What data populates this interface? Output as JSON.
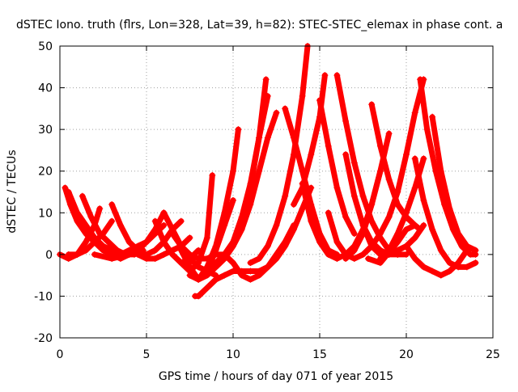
{
  "chart_data": {
    "type": "scatter",
    "title": "dSTEC Iono. truth (flrs, Lon=328, Lat=39, h=82): STEC-STEC_elemax in phase cont. a",
    "xlabel": "GPS time / hours of day 071 of year 2015",
    "ylabel": "dSTEC  / TECUs",
    "xlim": [
      0,
      25
    ],
    "ylim": [
      -20,
      50
    ],
    "xticks": [
      0,
      5,
      10,
      15,
      20,
      25
    ],
    "yticks": [
      -20,
      -10,
      0,
      10,
      20,
      30,
      40,
      50
    ],
    "xtick_labels": [
      "0",
      "5",
      "10",
      "15",
      "20",
      "25"
    ],
    "ytick_labels": [
      "-20",
      "-10",
      "0",
      "10",
      "20",
      "30",
      "40",
      "50"
    ],
    "grid": true,
    "marker": "+",
    "color": "#ff0000",
    "series": [
      {
        "x": [
          0.3,
          0.6,
          1.0,
          1.5,
          2.0,
          2.5,
          3.0,
          3.5,
          4.0
        ],
        "y": [
          16,
          12,
          8,
          5,
          3,
          1,
          0,
          -1,
          0
        ]
      },
      {
        "x": [
          0.5,
          1.0,
          1.5,
          2.0,
          2.5,
          3.0,
          3.5,
          4.0,
          4.5,
          5.0,
          5.5,
          6.0
        ],
        "y": [
          15,
          10,
          7,
          4,
          2,
          1,
          0,
          1,
          2,
          3,
          5,
          7
        ]
      },
      {
        "x": [
          0.0,
          0.5,
          1.0,
          1.5,
          2.0,
          2.3
        ],
        "y": [
          0,
          -1,
          0,
          3,
          7,
          11
        ]
      },
      {
        "x": [
          1.3,
          1.8,
          2.3,
          2.8,
          3.3,
          3.8,
          4.3,
          4.8
        ],
        "y": [
          14,
          9,
          5,
          3,
          1,
          0,
          0,
          1
        ]
      },
      {
        "x": [
          0.5,
          1.0,
          1.5,
          2.0,
          2.5,
          3.0
        ],
        "y": [
          0,
          0,
          1,
          3,
          5,
          8
        ]
      },
      {
        "x": [
          3.0,
          3.5,
          4.0,
          4.5,
          5.0,
          5.5,
          6.0,
          6.5,
          7.0
        ],
        "y": [
          12,
          7,
          3,
          1,
          0,
          1,
          3,
          6,
          8
        ]
      },
      {
        "x": [
          2.0,
          3.0,
          4.0,
          4.5,
          5.0,
          5.5,
          6.0
        ],
        "y": [
          0,
          -1,
          0,
          1,
          3,
          6,
          10
        ]
      },
      {
        "x": [
          5.5,
          6.0,
          6.5,
          7.0,
          7.5,
          8.0
        ],
        "y": [
          8,
          3,
          0,
          -2,
          -1,
          1
        ]
      },
      {
        "x": [
          6.0,
          6.5,
          7.0,
          7.5,
          8.0,
          8.5,
          9.0
        ],
        "y": [
          10,
          6,
          2,
          -1,
          -3,
          -4,
          -5
        ]
      },
      {
        "x": [
          4.5,
          5.0,
          5.5,
          6.0,
          6.5,
          7.0,
          7.5
        ],
        "y": [
          0,
          -1,
          -1,
          0,
          1,
          2,
          4
        ]
      },
      {
        "x": [
          7.0,
          7.5,
          8.0,
          8.5,
          9.0,
          9.5,
          10.0
        ],
        "y": [
          1,
          -3,
          -6,
          -4,
          1,
          7,
          13
        ]
      },
      {
        "x": [
          7.5,
          8.0,
          8.5,
          9.0,
          9.5,
          10.0,
          10.3
        ],
        "y": [
          -5,
          -6,
          -3,
          2,
          10,
          20,
          30
        ]
      },
      {
        "x": [
          6.5,
          7.0,
          7.5,
          8.0,
          8.5,
          9.0,
          9.5,
          10.0,
          10.5,
          11.0,
          11.5,
          12.0,
          12.5,
          13.0,
          13.5
        ],
        "y": [
          5,
          2,
          0,
          -1,
          -1,
          0,
          0,
          -2,
          -5,
          -6,
          -5,
          -3,
          0,
          3,
          7
        ]
      },
      {
        "x": [
          7.0,
          7.5,
          8.0,
          8.5,
          8.8
        ],
        "y": [
          -2,
          -4,
          -2,
          4,
          19
        ]
      },
      {
        "x": [
          8.0,
          8.5,
          9.0,
          9.5,
          10.0,
          10.5,
          11.0,
          11.5,
          12.0
        ],
        "y": [
          -6,
          -5,
          -3,
          -1,
          3,
          9,
          17,
          28,
          38
        ]
      },
      {
        "x": [
          8.5,
          9.0,
          9.5,
          10.0,
          10.5,
          11.0,
          11.5,
          11.9
        ],
        "y": [
          -3,
          -2,
          0,
          3,
          8,
          16,
          28,
          42
        ]
      },
      {
        "x": [
          9.0,
          9.5,
          10.0,
          10.5,
          11.0,
          11.5,
          12.0,
          12.5
        ],
        "y": [
          -3,
          -1,
          2,
          6,
          12,
          20,
          28,
          34
        ]
      },
      {
        "x": [
          7.8,
          8.0,
          8.5,
          9.0,
          9.5,
          10.0,
          10.5,
          11.0,
          11.5,
          12.0
        ],
        "y": [
          -10,
          -10,
          -8,
          -6,
          -5,
          -4,
          -4,
          -4,
          -4,
          -3
        ]
      },
      {
        "x": [
          12.0,
          12.5,
          13.0,
          13.5,
          14.0,
          14.5
        ],
        "y": [
          -3,
          -1,
          2,
          6,
          11,
          16
        ]
      },
      {
        "x": [
          11.0,
          11.5,
          12.0,
          12.5,
          13.0,
          13.5,
          14.0,
          14.3
        ],
        "y": [
          -2,
          -1,
          2,
          7,
          14,
          24,
          38,
          50
        ]
      },
      {
        "x": [
          13.0,
          13.5,
          14.0,
          14.5,
          15.0,
          15.5,
          16.0
        ],
        "y": [
          35,
          28,
          20,
          12,
          5,
          1,
          0
        ]
      },
      {
        "x": [
          13.5,
          14.0,
          14.5,
          15.0,
          15.3
        ],
        "y": [
          12,
          16,
          24,
          33,
          43
        ]
      },
      {
        "x": [
          14.0,
          14.5,
          15.0,
          15.5,
          16.0,
          16.5,
          17.0,
          17.5,
          18.0,
          18.5
        ],
        "y": [
          17,
          8,
          3,
          0,
          -1,
          0,
          2,
          6,
          12,
          20
        ]
      },
      {
        "x": [
          15.0,
          15.5,
          16.0,
          16.5,
          17.0
        ],
        "y": [
          37,
          26,
          16,
          9,
          5
        ]
      },
      {
        "x": [
          15.5,
          16.0,
          16.5,
          17.0,
          17.5,
          18.0,
          18.5,
          19.0,
          19.5,
          20.0,
          20.5,
          21.0
        ],
        "y": [
          10,
          3,
          0,
          -1,
          0,
          2,
          5,
          9,
          15,
          24,
          34,
          42
        ]
      },
      {
        "x": [
          16.0,
          16.5,
          17.0,
          17.5,
          18.0,
          18.5,
          19.0,
          19.5,
          20.0
        ],
        "y": [
          43,
          32,
          22,
          14,
          8,
          4,
          1,
          0,
          0
        ]
      },
      {
        "x": [
          16.5,
          17.0,
          17.5,
          18.0,
          18.5,
          19.0,
          19.5
        ],
        "y": [
          24,
          14,
          7,
          3,
          1,
          0,
          0
        ]
      },
      {
        "x": [
          16.5,
          17.0,
          17.5,
          18.0,
          18.5,
          19.0
        ],
        "y": [
          -1,
          1,
          5,
          12,
          20,
          29
        ]
      },
      {
        "x": [
          17.5,
          18.0,
          18.5,
          19.0,
          19.5,
          20.0,
          20.5,
          21.0
        ],
        "y": [
          7,
          2,
          0,
          0,
          1,
          2,
          4,
          7
        ]
      },
      {
        "x": [
          18.0,
          18.5,
          19.0,
          19.5,
          20.0,
          20.5
        ],
        "y": [
          36,
          26,
          18,
          12,
          9,
          7
        ]
      },
      {
        "x": [
          18.5,
          19.0,
          19.5,
          20.0,
          20.5,
          21.0
        ],
        "y": [
          -1,
          1,
          5,
          10,
          16,
          23
        ]
      },
      {
        "x": [
          17.8,
          18.5,
          19.5,
          20.0,
          20.5,
          20.8
        ],
        "y": [
          -1,
          -2,
          3,
          6,
          7,
          6
        ]
      },
      {
        "x": [
          20.5,
          21.0,
          21.5,
          22.0,
          22.5,
          23.0,
          23.5,
          24.0
        ],
        "y": [
          23,
          13,
          6,
          1,
          -2,
          -3,
          -3,
          -2
        ]
      },
      {
        "x": [
          20.8,
          21.2,
          21.7,
          22.2,
          22.7,
          23.2,
          23.7,
          24.0
        ],
        "y": [
          42,
          30,
          20,
          12,
          6,
          2,
          0,
          0
        ]
      },
      {
        "x": [
          21.5,
          22.0,
          22.5,
          23.0,
          23.5,
          24.0
        ],
        "y": [
          33,
          20,
          11,
          5,
          2,
          1
        ]
      },
      {
        "x": [
          20.0,
          20.5,
          21.0,
          21.5,
          22.0,
          22.5,
          23.0,
          23.5
        ],
        "y": [
          2,
          -1,
          -3,
          -4,
          -5,
          -4,
          -2,
          1
        ]
      }
    ]
  }
}
